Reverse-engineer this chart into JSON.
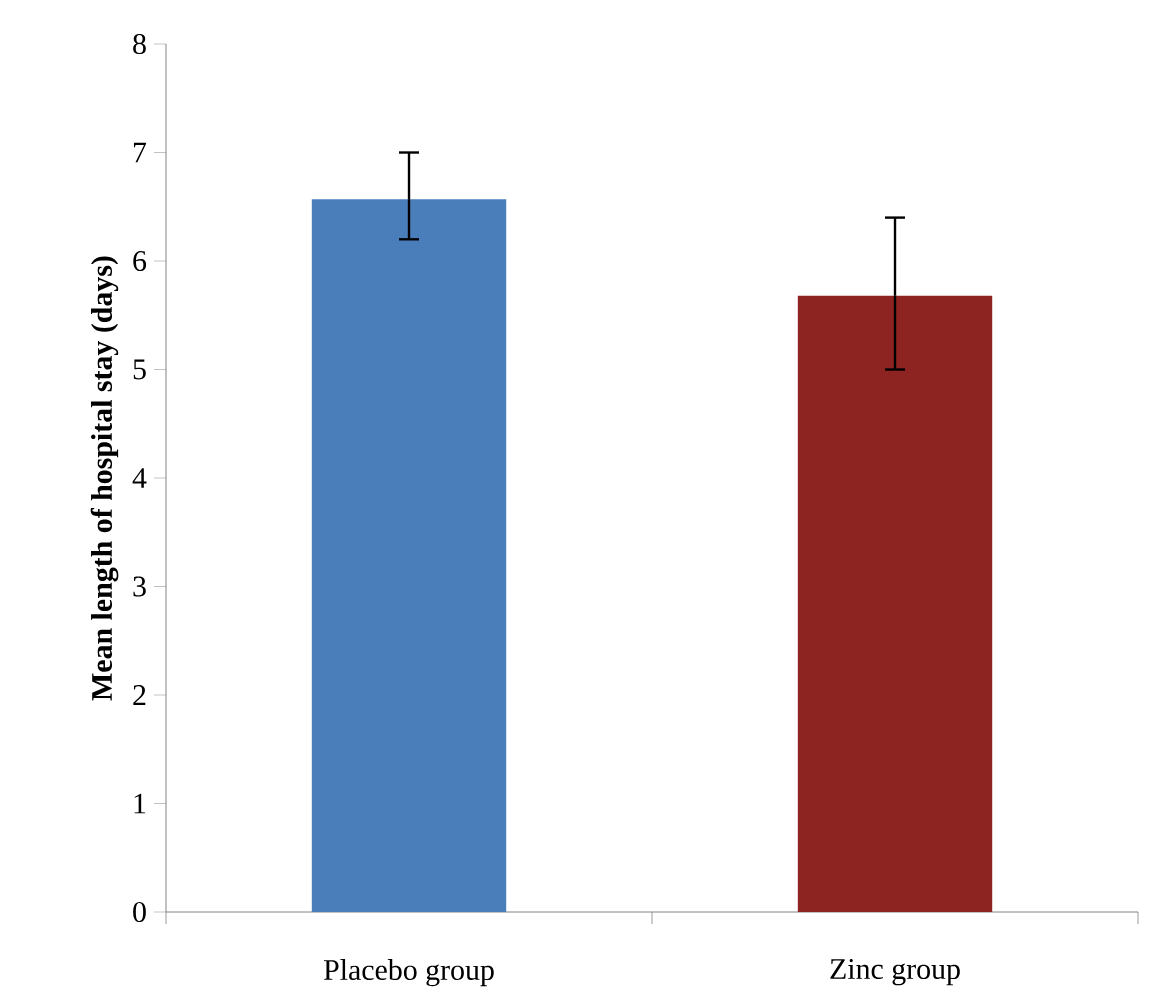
{
  "chart_data": {
    "type": "bar",
    "ylabel": "Mean length of hospital stay (days)",
    "categories": [
      "Placebo group",
      "Zinc group"
    ],
    "values": [
      6.57,
      5.68
    ],
    "colors": [
      "#4a7ebb",
      "#8e2421"
    ],
    "errors": [
      [
        6.2,
        7.0
      ],
      [
        5.0,
        6.4
      ]
    ],
    "ylim": [
      0,
      8
    ],
    "yticks": [
      0,
      1,
      2,
      3,
      4,
      5,
      6,
      7,
      8
    ]
  }
}
